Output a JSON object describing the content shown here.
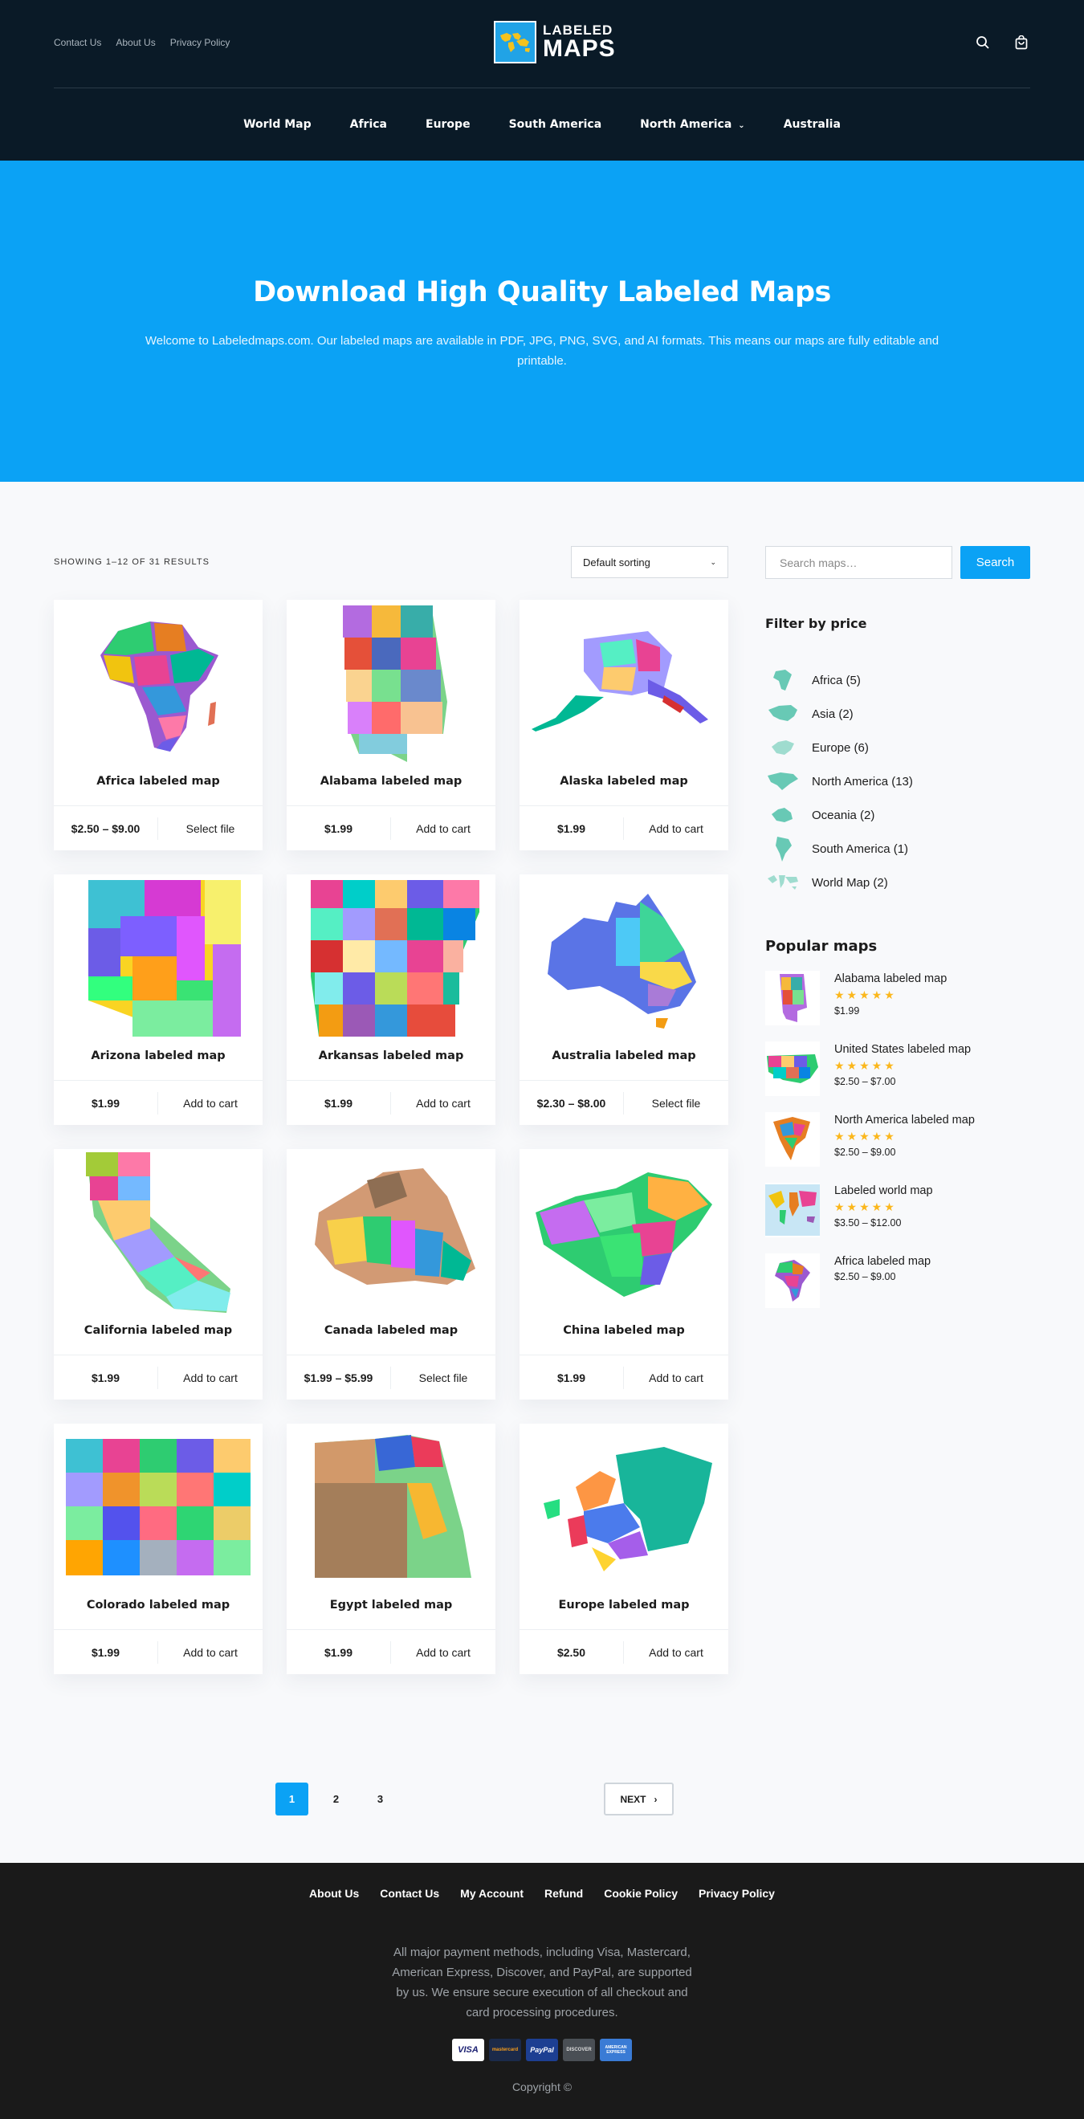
{
  "header": {
    "top_links": [
      "Contact Us",
      "About Us",
      "Privacy Policy"
    ],
    "logo_line1": "LABELED",
    "logo_line2": "MAPS",
    "nav": [
      "World Map",
      "Africa",
      "Europe",
      "South America",
      "North America",
      "Australia"
    ],
    "icons": [
      "search-icon",
      "cart-icon"
    ]
  },
  "hero": {
    "title": "Download High Quality Labeled Maps",
    "text": "Welcome to Labeledmaps.com. Our labeled maps are available in PDF, JPG, PNG, SVG, and AI formats. This means our maps are fully editable and printable."
  },
  "shop": {
    "result_count": "SHOWING 1–12 OF 31 RESULTS",
    "sorting": "Default sorting",
    "products": [
      {
        "name": "Africa labeled map",
        "price": "$2.50 – $9.00",
        "action": "Select file"
      },
      {
        "name": "Alabama labeled map",
        "price": "$1.99",
        "action": "Add to cart"
      },
      {
        "name": "Alaska labeled map",
        "price": "$1.99",
        "action": "Add to cart"
      },
      {
        "name": "Arizona labeled map",
        "price": "$1.99",
        "action": "Add to cart"
      },
      {
        "name": "Arkansas labeled map",
        "price": "$1.99",
        "action": "Add to cart"
      },
      {
        "name": "Australia labeled map",
        "price": "$2.30 – $8.00",
        "action": "Select file"
      },
      {
        "name": "California labeled map",
        "price": "$1.99",
        "action": "Add to cart"
      },
      {
        "name": "Canada labeled map",
        "price": "$1.99 – $5.99",
        "action": "Select file"
      },
      {
        "name": "China labeled map",
        "price": "$1.99",
        "action": "Add to cart"
      },
      {
        "name": "Colorado labeled map",
        "price": "$1.99",
        "action": "Add to cart"
      },
      {
        "name": "Egypt labeled map",
        "price": "$1.99",
        "action": "Add to cart"
      },
      {
        "name": "Europe labeled map",
        "price": "$2.50",
        "action": "Add to cart"
      }
    ],
    "pages": [
      "1",
      "2",
      "3"
    ],
    "current_page": "1",
    "next_label": "NEXT"
  },
  "sidebar": {
    "search_placeholder": "Search maps…",
    "search_button": "Search",
    "filter_title": "Filter by price",
    "categories": [
      "Africa (5)",
      "Asia (2)",
      "Europe (6)",
      "North America (13)",
      "Oceania (2)",
      "South America (1)",
      "World Map (2)"
    ],
    "popular_title": "Popular maps",
    "popular": [
      {
        "name": "Alabama labeled map",
        "stars": "★★★★★",
        "price": "$1.99"
      },
      {
        "name": "United States labeled map",
        "stars": "★★★★★",
        "price": "$2.50 – $7.00"
      },
      {
        "name": "North America labeled map",
        "stars": "★★★★★",
        "price": "$2.50 – $9.00"
      },
      {
        "name": "Labeled world map",
        "stars": "★★★★★",
        "price": "$3.50 – $12.00"
      },
      {
        "name": "Africa labeled map",
        "stars": "",
        "price": "$2.50 – $9.00"
      }
    ]
  },
  "footer": {
    "links": [
      "About Us",
      "Contact Us",
      "My Account",
      "Refund",
      "Cookie Policy",
      "Privacy Policy"
    ],
    "payment_text": "All major payment methods, including Visa, Mastercard, American Express, Discover, and PayPal, are supported by us. We ensure secure execution of all checkout and card processing procedures.",
    "cards": [
      "VISA",
      "mastercard",
      "PayPal",
      "DISCOVER",
      "AMERICAN EXPRESS"
    ],
    "copyright": "Copyright ©"
  },
  "colors": {
    "header_bg": "#0a1a27",
    "hero_bg": "#0ba2f5",
    "accent": "#0ba2f5",
    "footer_bg": "#1a1a1a",
    "star": "#fbb71c"
  }
}
